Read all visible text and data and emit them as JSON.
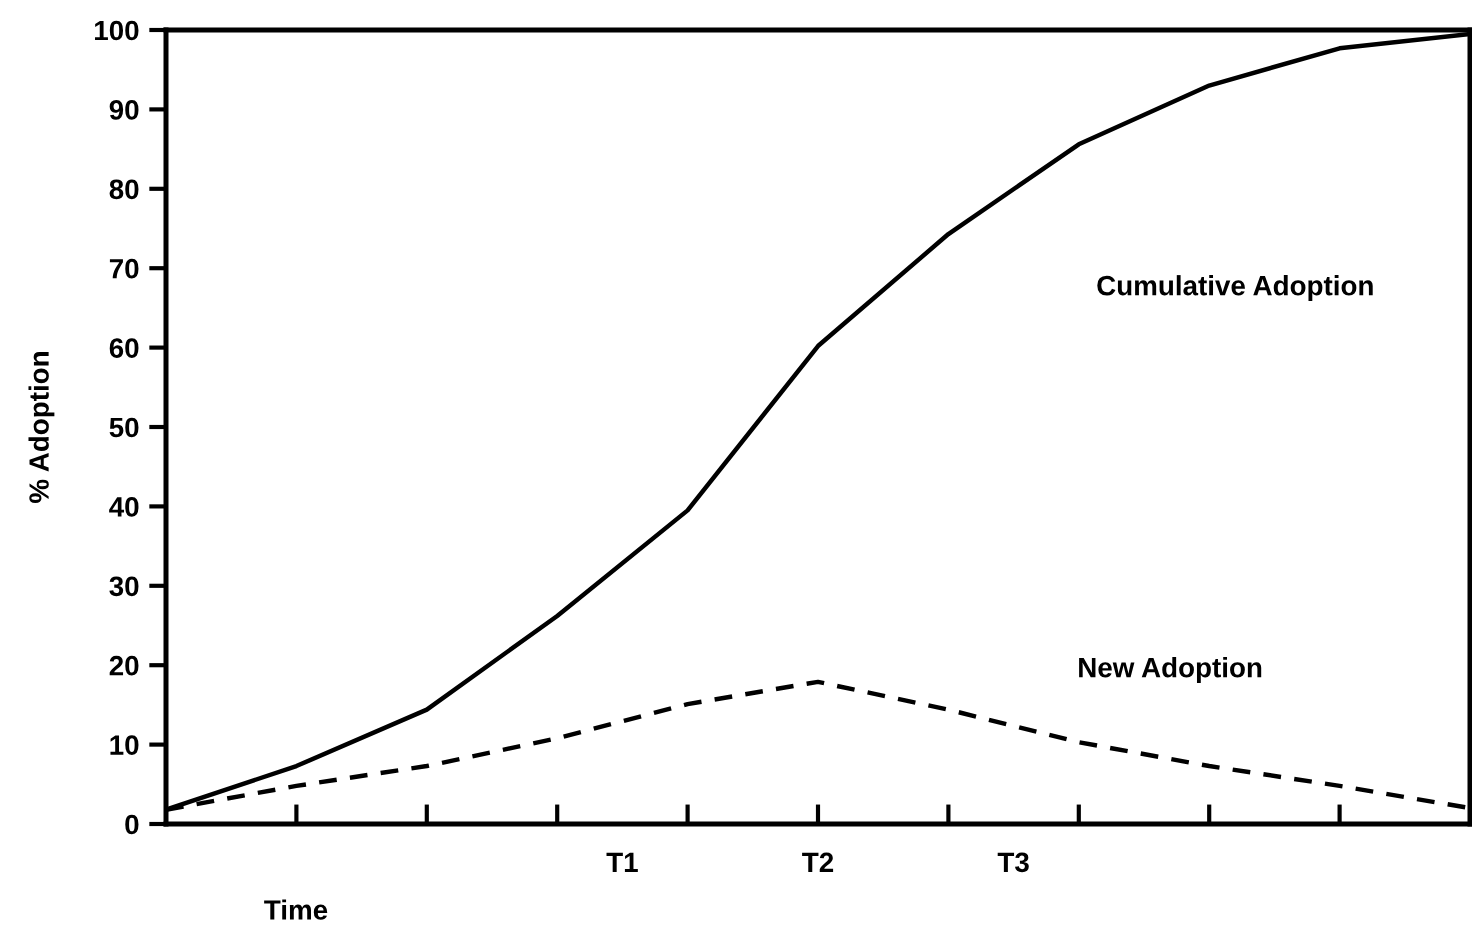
{
  "chart_data": {
    "type": "line",
    "ylabel": "% Adoption",
    "xlabel": "Time",
    "categories": [
      null,
      null,
      null,
      null,
      null,
      null,
      null,
      "T1",
      null,
      null,
      "T2",
      null,
      null,
      "T3",
      null,
      null,
      null,
      null,
      null,
      null,
      null
    ],
    "series": [
      {
        "color": "#000000",
        "line_style": "solid",
        "values": [
          1.8,
          null,
          7.3,
          null,
          14.4,
          null,
          26.2,
          null,
          39.5,
          null,
          60.2,
          null,
          74.3,
          null,
          85.6,
          null,
          93,
          null,
          97.7,
          null,
          99.5
        ]
      },
      {
        "color": "#000000",
        "line_style": "dashed",
        "values": [
          1.8,
          null,
          4.8,
          null,
          7.3,
          null,
          10.8,
          null,
          15.1,
          null,
          17.9,
          null,
          14.4,
          null,
          10.3,
          null,
          7.3,
          null,
          4.8,
          null,
          2.0
        ]
      }
    ],
    "annotations": [
      "Cumulative Adoption",
      "New Adoption"
    ],
    "ylim": [
      0,
      100
    ],
    "yticks": [
      0,
      10,
      20,
      30,
      40,
      50,
      60,
      70,
      80,
      90,
      100
    ],
    "grid": false,
    "legend": false,
    "marker": "none"
  }
}
